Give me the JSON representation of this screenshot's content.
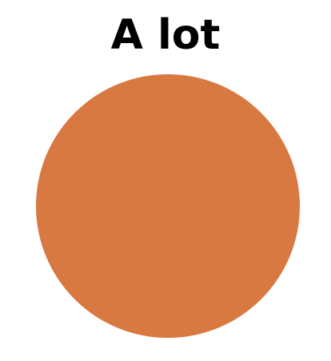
{
  "chart_data": {
    "type": "pie",
    "title": "A lot",
    "series": [
      {
        "values": [
          100
        ],
        "colors": [
          "#d97942"
        ]
      }
    ],
    "legend": "none"
  }
}
